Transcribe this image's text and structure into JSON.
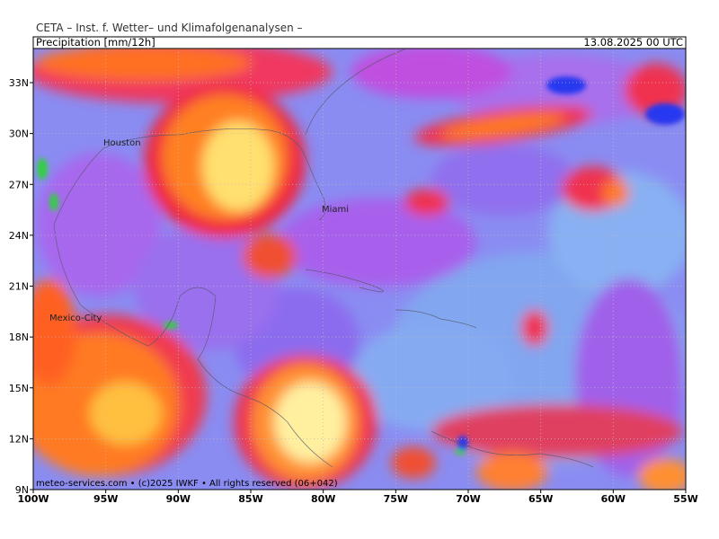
{
  "header": {
    "institute": "CETA – Inst. f. Wetter– und Klimafolgenanalysen –",
    "product": "Precipitation [mm/12h]",
    "valid_time": "13.08.2025 00 UTC"
  },
  "map": {
    "lat_labels": [
      "9N",
      "12N",
      "15N",
      "18N",
      "21N",
      "24N",
      "27N",
      "30N",
      "33N"
    ],
    "lon_labels": [
      "100W",
      "95W",
      "90W",
      "85W",
      "80W",
      "75W",
      "70W",
      "65W",
      "60W",
      "55W"
    ],
    "cities": [
      "Houston",
      "Miami",
      "Mexico-City"
    ]
  },
  "footer": {
    "credit": "meteo-services.com • (c)2025 IWKF • All rights reserved (06+042)"
  }
}
